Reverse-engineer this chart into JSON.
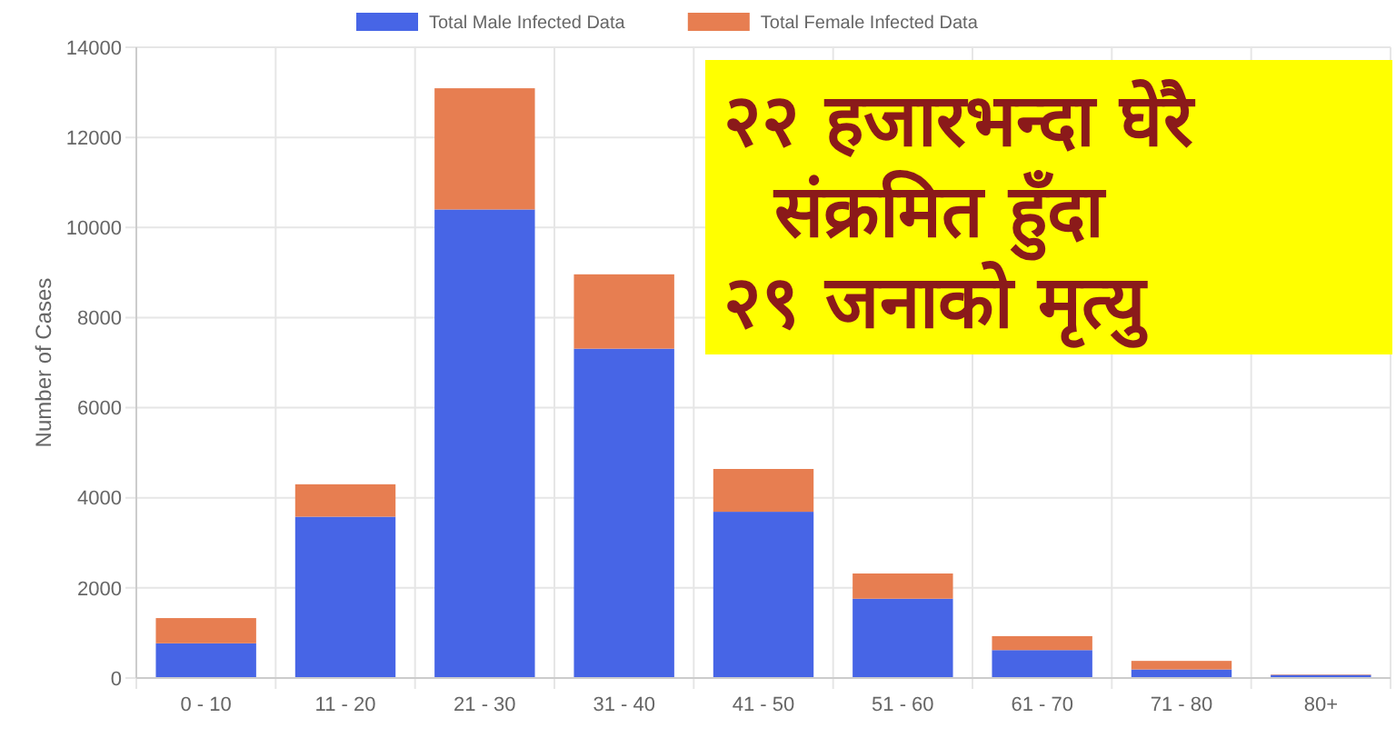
{
  "chart_data": {
    "type": "bar",
    "stacked": true,
    "ylabel": "Number of Cases",
    "categories": [
      "0 - 10",
      "11 - 20",
      "21 - 30",
      "31 - 40",
      "41 - 50",
      "51 - 60",
      "61 - 70",
      "71 - 80",
      "80+"
    ],
    "series": [
      {
        "name": "Total Male Infected Data",
        "color": "#4765e6",
        "values": [
          770,
          3580,
          10400,
          7310,
          3690,
          1760,
          620,
          190,
          70
        ]
      },
      {
        "name": "Total Female Infected Data",
        "color": "#e77e51",
        "values": [
          560,
          720,
          2690,
          1650,
          950,
          560,
          310,
          190,
          10
        ]
      }
    ],
    "ylim": [
      0,
      14000
    ],
    "yticks": [
      0,
      2000,
      4000,
      6000,
      8000,
      10000,
      12000,
      14000
    ],
    "grid": true,
    "legend": "top",
    "annotations": [
      "२२ हजारभन्दा घेरै\n  संक्रमित हुँदा\n२९ जनाको मृत्यु"
    ]
  }
}
